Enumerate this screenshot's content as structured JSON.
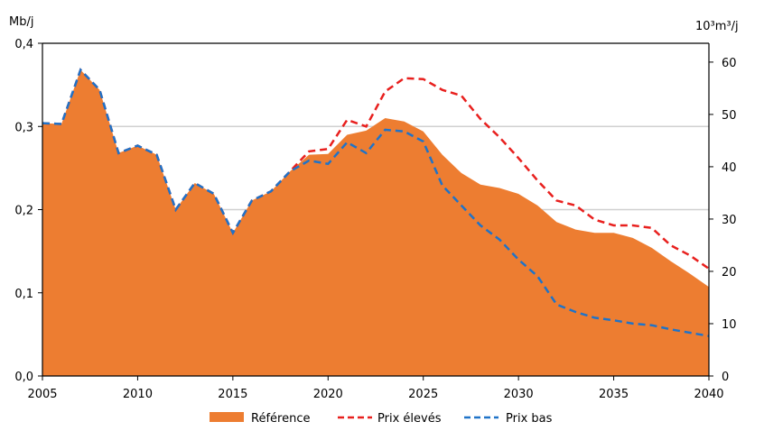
{
  "chart_data": {
    "type": "area",
    "title": "",
    "ylabel_left": "Mb/j",
    "ylabel_right": "10³m³/j",
    "ylim_left": [
      0,
      0.4
    ],
    "yticks_left": [
      "0,0",
      "0,1",
      "0,2",
      "0,3",
      "0,4"
    ],
    "ylim_right": [
      0,
      63.6
    ],
    "yticks_right": [
      "0",
      "10",
      "20",
      "30",
      "40",
      "50",
      "60"
    ],
    "xlim": [
      2005,
      2040
    ],
    "xticks": [
      "2005",
      "2010",
      "2015",
      "2020",
      "2025",
      "2030",
      "2035",
      "2040"
    ],
    "grid": "horizontal",
    "legend_position": "bottom",
    "x": [
      2005,
      2006,
      2007,
      2008,
      2009,
      2010,
      2011,
      2012,
      2013,
      2014,
      2015,
      2016,
      2017,
      2018,
      2019,
      2020,
      2021,
      2022,
      2023,
      2024,
      2025,
      2026,
      2027,
      2028,
      2029,
      2030,
      2031,
      2032,
      2033,
      2034,
      2035,
      2036,
      2037,
      2038,
      2039,
      2040
    ],
    "series": [
      {
        "name": "Référence",
        "style": "area",
        "color": "#ED7D31",
        "values": [
          0.304,
          0.303,
          0.368,
          0.344,
          0.268,
          0.277,
          0.266,
          0.2,
          0.232,
          0.219,
          0.172,
          0.211,
          0.222,
          0.246,
          0.266,
          0.267,
          0.29,
          0.295,
          0.31,
          0.306,
          0.294,
          0.266,
          0.244,
          0.23,
          0.226,
          0.219,
          0.205,
          0.185,
          0.176,
          0.172,
          0.172,
          0.166,
          0.154,
          0.138,
          0.123,
          0.107
        ]
      },
      {
        "name": "Prix élevés",
        "style": "dashed",
        "color": "#E8201E",
        "values": [
          0.304,
          0.303,
          0.368,
          0.344,
          0.268,
          0.277,
          0.266,
          0.2,
          0.232,
          0.219,
          0.172,
          0.211,
          0.222,
          0.246,
          0.27,
          0.273,
          0.308,
          0.3,
          0.342,
          0.358,
          0.357,
          0.344,
          0.337,
          0.309,
          0.287,
          0.262,
          0.235,
          0.211,
          0.205,
          0.188,
          0.181,
          0.181,
          0.178,
          0.157,
          0.145,
          0.129
        ]
      },
      {
        "name": "Prix bas",
        "style": "dashed",
        "color": "#1F73C8",
        "values": [
          0.304,
          0.303,
          0.368,
          0.344,
          0.268,
          0.277,
          0.266,
          0.2,
          0.232,
          0.219,
          0.172,
          0.211,
          0.222,
          0.246,
          0.259,
          0.255,
          0.281,
          0.268,
          0.296,
          0.294,
          0.282,
          0.229,
          0.205,
          0.181,
          0.164,
          0.14,
          0.12,
          0.086,
          0.077,
          0.07,
          0.067,
          0.063,
          0.061,
          0.056,
          0.052,
          0.048
        ]
      }
    ]
  }
}
